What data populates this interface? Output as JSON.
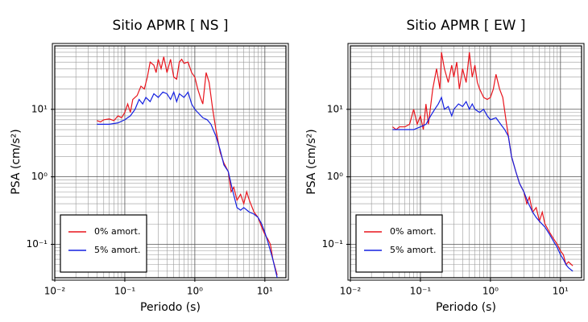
{
  "chart_data": [
    {
      "type": "line",
      "title": "Sitio APMR [ NS ]",
      "x_label": "Periodo (s)",
      "y_label": "PSA (cm/s²)",
      "log_x": true,
      "log_y": true,
      "grid": true,
      "legend": "lower left",
      "xlim": [
        0.01,
        20
      ],
      "ylim": [
        0.032,
        87
      ],
      "xticks": [
        {
          "value": 0.01,
          "label": "10⁻²"
        },
        {
          "value": 0.1,
          "label": "10⁻¹"
        },
        {
          "value": 1,
          "label": "10⁰"
        },
        {
          "value": 10,
          "label": "10¹"
        }
      ],
      "yticks": [
        {
          "value": 0.1,
          "label": "10⁻¹"
        },
        {
          "value": 1,
          "label": "10⁰"
        },
        {
          "value": 10,
          "label": "10¹"
        }
      ],
      "series": [
        {
          "name": "0% amort.",
          "color": "#e8141c",
          "x": [
            0.04,
            0.045,
            0.05,
            0.06,
            0.07,
            0.08,
            0.09,
            0.1,
            0.11,
            0.12,
            0.13,
            0.15,
            0.17,
            0.19,
            0.21,
            0.23,
            0.26,
            0.28,
            0.3,
            0.33,
            0.36,
            0.4,
            0.45,
            0.5,
            0.55,
            0.6,
            0.65,
            0.7,
            0.8,
            0.9,
            1.0,
            1.1,
            1.2,
            1.3,
            1.45,
            1.6,
            1.8,
            2.0,
            2.3,
            2.6,
            3.0,
            3.3,
            3.6,
            4.0,
            4.5,
            5.0,
            5.5,
            6.0,
            7.0,
            8.0,
            9.0,
            10,
            11,
            12,
            13,
            15
          ],
          "values": [
            6.8,
            6.5,
            7,
            7.2,
            6.8,
            8,
            7.5,
            9,
            12,
            9,
            14,
            16,
            22,
            20,
            30,
            50,
            45,
            35,
            55,
            40,
            60,
            35,
            55,
            30,
            28,
            50,
            55,
            48,
            50,
            35,
            30,
            20,
            15,
            12,
            35,
            25,
            10,
            5,
            2.3,
            1.6,
            1.2,
            0.6,
            0.7,
            0.45,
            0.55,
            0.4,
            0.6,
            0.45,
            0.3,
            0.25,
            0.18,
            0.14,
            0.12,
            0.1,
            0.06,
            0.035
          ]
        },
        {
          "name": "5% amort.",
          "color": "#1420e0",
          "x": [
            0.04,
            0.06,
            0.08,
            0.1,
            0.12,
            0.14,
            0.16,
            0.18,
            0.2,
            0.23,
            0.26,
            0.3,
            0.35,
            0.4,
            0.45,
            0.5,
            0.55,
            0.6,
            0.7,
            0.8,
            0.9,
            1.0,
            1.1,
            1.3,
            1.5,
            1.7,
            2.0,
            2.3,
            2.6,
            3.0,
            3.5,
            4.0,
            4.5,
            5,
            6,
            7,
            8,
            9,
            10,
            11,
            12,
            13,
            15
          ],
          "values": [
            6,
            6,
            6.3,
            7,
            8,
            10,
            14,
            12,
            15,
            13,
            17,
            15,
            18,
            17,
            14,
            18,
            13,
            17,
            15,
            18,
            12,
            10,
            9,
            7.5,
            7,
            6,
            4,
            2.5,
            1.5,
            1.2,
            0.6,
            0.35,
            0.32,
            0.35,
            0.3,
            0.28,
            0.25,
            0.2,
            0.15,
            0.11,
            0.08,
            0.06,
            0.032
          ]
        }
      ]
    },
    {
      "type": "line",
      "title": "Sitio APMR [ EW ]",
      "x_label": "Periodo (s)",
      "y_label": "PSA (cm/s²)",
      "log_x": true,
      "log_y": true,
      "grid": true,
      "legend": "lower left",
      "xlim": [
        0.01,
        20
      ],
      "ylim": [
        0.032,
        87
      ],
      "xticks": [
        {
          "value": 0.01,
          "label": "10⁻²"
        },
        {
          "value": 0.1,
          "label": "10⁻¹"
        },
        {
          "value": 1,
          "label": "10⁰"
        },
        {
          "value": 10,
          "label": "10¹"
        }
      ],
      "yticks": [
        {
          "value": 0.1,
          "label": "10⁻¹"
        },
        {
          "value": 1,
          "label": "10⁰"
        },
        {
          "value": 10,
          "label": "10¹"
        }
      ],
      "series": [
        {
          "name": "0% amort.",
          "color": "#e8141c",
          "x": [
            0.04,
            0.045,
            0.05,
            0.06,
            0.07,
            0.08,
            0.09,
            0.1,
            0.11,
            0.12,
            0.13,
            0.15,
            0.17,
            0.19,
            0.2,
            0.22,
            0.25,
            0.28,
            0.3,
            0.33,
            0.36,
            0.4,
            0.45,
            0.5,
            0.55,
            0.6,
            0.65,
            0.7,
            0.8,
            0.9,
            1.0,
            1.1,
            1.2,
            1.35,
            1.5,
            1.7,
            2.0,
            2.3,
            2.6,
            3.0,
            3.3,
            3.6,
            4.0,
            4.5,
            5,
            5.5,
            6,
            7,
            8,
            9,
            10,
            11,
            12,
            13,
            15
          ],
          "values": [
            5.5,
            5,
            5.5,
            5.5,
            6,
            10,
            6,
            8,
            5,
            12,
            6,
            20,
            40,
            20,
            70,
            40,
            25,
            45,
            30,
            50,
            20,
            40,
            25,
            70,
            30,
            45,
            25,
            20,
            15,
            14,
            15,
            20,
            33,
            20,
            15,
            6,
            2,
            1.2,
            0.8,
            0.6,
            0.4,
            0.5,
            0.3,
            0.35,
            0.22,
            0.3,
            0.2,
            0.15,
            0.12,
            0.1,
            0.08,
            0.07,
            0.05,
            0.055,
            0.048
          ]
        },
        {
          "name": "5% amort.",
          "color": "#1420e0",
          "x": [
            0.04,
            0.06,
            0.08,
            0.1,
            0.12,
            0.14,
            0.16,
            0.18,
            0.2,
            0.22,
            0.25,
            0.28,
            0.3,
            0.35,
            0.4,
            0.45,
            0.5,
            0.55,
            0.6,
            0.7,
            0.8,
            0.9,
            1.0,
            1.2,
            1.4,
            1.6,
            1.8,
            2.0,
            2.3,
            2.6,
            3.0,
            3.5,
            4,
            4.5,
            5,
            6,
            7,
            8,
            9,
            10,
            11,
            12,
            13,
            15
          ],
          "values": [
            5,
            5,
            5,
            5.5,
            6,
            8,
            10,
            12,
            15,
            10,
            11,
            8,
            10,
            12,
            11,
            13,
            10,
            12,
            10,
            9,
            10,
            8,
            7,
            7.5,
            6,
            5,
            4,
            2,
            1.2,
            0.8,
            0.6,
            0.4,
            0.3,
            0.25,
            0.22,
            0.18,
            0.14,
            0.11,
            0.09,
            0.07,
            0.06,
            0.05,
            0.045,
            0.04
          ]
        }
      ]
    }
  ]
}
